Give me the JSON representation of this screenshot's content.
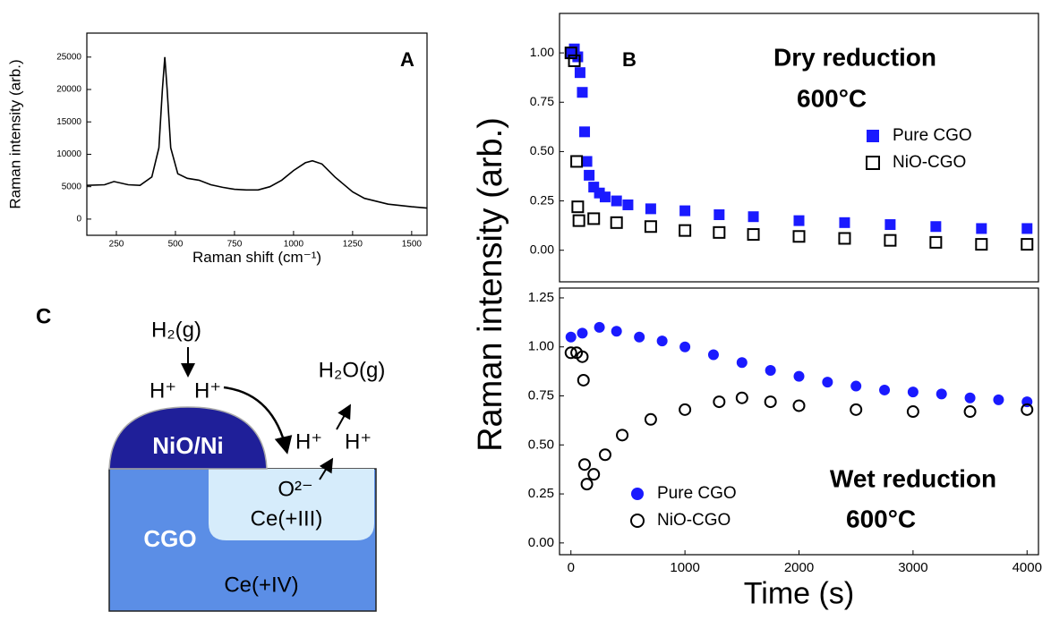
{
  "chart_data": [
    {
      "type": "line",
      "label": "A",
      "xlabel": "Raman shift (cm⁻¹)",
      "ylabel": "Raman intensity (arb.)",
      "x": [
        125,
        200,
        240,
        300,
        350,
        400,
        430,
        445,
        455,
        465,
        480,
        510,
        550,
        600,
        650,
        700,
        750,
        800,
        850,
        900,
        950,
        1000,
        1050,
        1080,
        1120,
        1175,
        1250,
        1300,
        1400,
        1500,
        1565
      ],
      "values": [
        5200,
        5300,
        5800,
        5300,
        5200,
        6500,
        11000,
        20000,
        25000,
        20000,
        11000,
        7000,
        6300,
        6000,
        5300,
        4900,
        4600,
        4500,
        4500,
        5000,
        6000,
        7500,
        8700,
        9000,
        8500,
        6500,
        4200,
        3200,
        2300,
        1900,
        1700
      ],
      "color": "#000000",
      "xlim": [
        125,
        1565
      ],
      "xticks": [
        250,
        500,
        750,
        1000,
        1250,
        1500
      ],
      "ylim": [
        -2500,
        28700
      ],
      "yticks": [
        0,
        5000,
        10000,
        15000,
        20000,
        25000
      ]
    },
    {
      "type": "scatter",
      "label": "B",
      "ylabel": "Raman intensity (arb.)",
      "annotations": [
        "Dry reduction",
        "600°C"
      ],
      "legend": "upper right",
      "series": [
        {
          "name": "Pure CGO",
          "color": "#1a1aff",
          "marker": "square",
          "filled": true,
          "x": [
            0,
            30,
            60,
            80,
            100,
            120,
            140,
            160,
            200,
            250,
            300,
            400,
            500,
            700,
            1000,
            1300,
            1600,
            2000,
            2400,
            2800,
            3200,
            3600,
            4000
          ],
          "values": [
            1.0,
            1.02,
            0.98,
            0.9,
            0.8,
            0.6,
            0.45,
            0.38,
            0.32,
            0.29,
            0.27,
            0.25,
            0.23,
            0.21,
            0.2,
            0.18,
            0.17,
            0.15,
            0.14,
            0.13,
            0.12,
            0.11,
            0.11
          ]
        },
        {
          "name": "NiO-CGO",
          "color": "#000000",
          "marker": "square",
          "filled": false,
          "x": [
            0,
            30,
            50,
            60,
            70,
            200,
            400,
            700,
            1000,
            1300,
            1600,
            2000,
            2400,
            2800,
            3200,
            3600,
            4000
          ],
          "values": [
            1.0,
            0.96,
            0.45,
            0.22,
            0.15,
            0.16,
            0.14,
            0.12,
            0.1,
            0.09,
            0.08,
            0.07,
            0.06,
            0.05,
            0.04,
            0.03,
            0.03
          ]
        }
      ],
      "xlim": [
        -100,
        4100
      ],
      "ylim": [
        -0.16,
        1.2
      ],
      "yticks": [
        {
          "value": 0,
          "label": "0.00"
        },
        {
          "value": 0.25,
          "label": "0.25"
        },
        {
          "value": 0.5,
          "label": "0.50"
        },
        {
          "value": 0.75,
          "label": "0.75"
        },
        {
          "value": 1,
          "label": "1.00"
        }
      ]
    },
    {
      "type": "scatter",
      "xlabel": "Time (s)",
      "annotations": [
        "Wet reduction",
        "600°C"
      ],
      "legend": "lower left",
      "series": [
        {
          "name": "Pure CGO",
          "color": "#1a1aff",
          "marker": "circle",
          "filled": true,
          "x": [
            0,
            100,
            250,
            400,
            600,
            800,
            1000,
            1250,
            1500,
            1750,
            2000,
            2250,
            2500,
            2750,
            3000,
            3250,
            3500,
            3750,
            4000
          ],
          "values": [
            1.05,
            1.07,
            1.1,
            1.08,
            1.05,
            1.03,
            1.0,
            0.96,
            0.92,
            0.88,
            0.85,
            0.82,
            0.8,
            0.78,
            0.77,
            0.76,
            0.74,
            0.73,
            0.72
          ]
        },
        {
          "name": "NiO-CGO",
          "color": "#000000",
          "marker": "circle",
          "filled": false,
          "x": [
            0,
            50,
            100,
            110,
            120,
            140,
            200,
            300,
            450,
            700,
            1000,
            1300,
            1500,
            1750,
            2000,
            2500,
            3000,
            3500,
            4000
          ],
          "values": [
            0.97,
            0.97,
            0.95,
            0.83,
            0.4,
            0.3,
            0.35,
            0.45,
            0.55,
            0.63,
            0.68,
            0.72,
            0.74,
            0.72,
            0.7,
            0.68,
            0.67,
            0.67,
            0.68
          ]
        }
      ],
      "xlim": [
        -100,
        4100
      ],
      "xticks": [
        0,
        1000,
        2000,
        3000,
        4000
      ],
      "ylim": [
        -0.06,
        1.3
      ],
      "yticks": [
        {
          "value": 0,
          "label": "0.00"
        },
        {
          "value": 0.25,
          "label": "0.25"
        },
        {
          "value": 0.5,
          "label": "0.50"
        },
        {
          "value": 0.75,
          "label": "0.75"
        },
        {
          "value": 1,
          "label": "1.00"
        },
        {
          "value": 1.25,
          "label": "1.25"
        }
      ]
    }
  ],
  "diagram": {
    "label": "C",
    "gas_in": "H₂(g)",
    "h_left": "H⁺",
    "h_right": "H⁺",
    "gas_out": "H₂O(g)",
    "h_surface_left": "H⁺",
    "h_surface_right": "H⁺",
    "oxide_ion": "O²⁻",
    "reduced_region": "Ce(+III)",
    "particle": "NiO/Ni",
    "substrate": "CGO",
    "bulk": "Ce(+IV)"
  }
}
